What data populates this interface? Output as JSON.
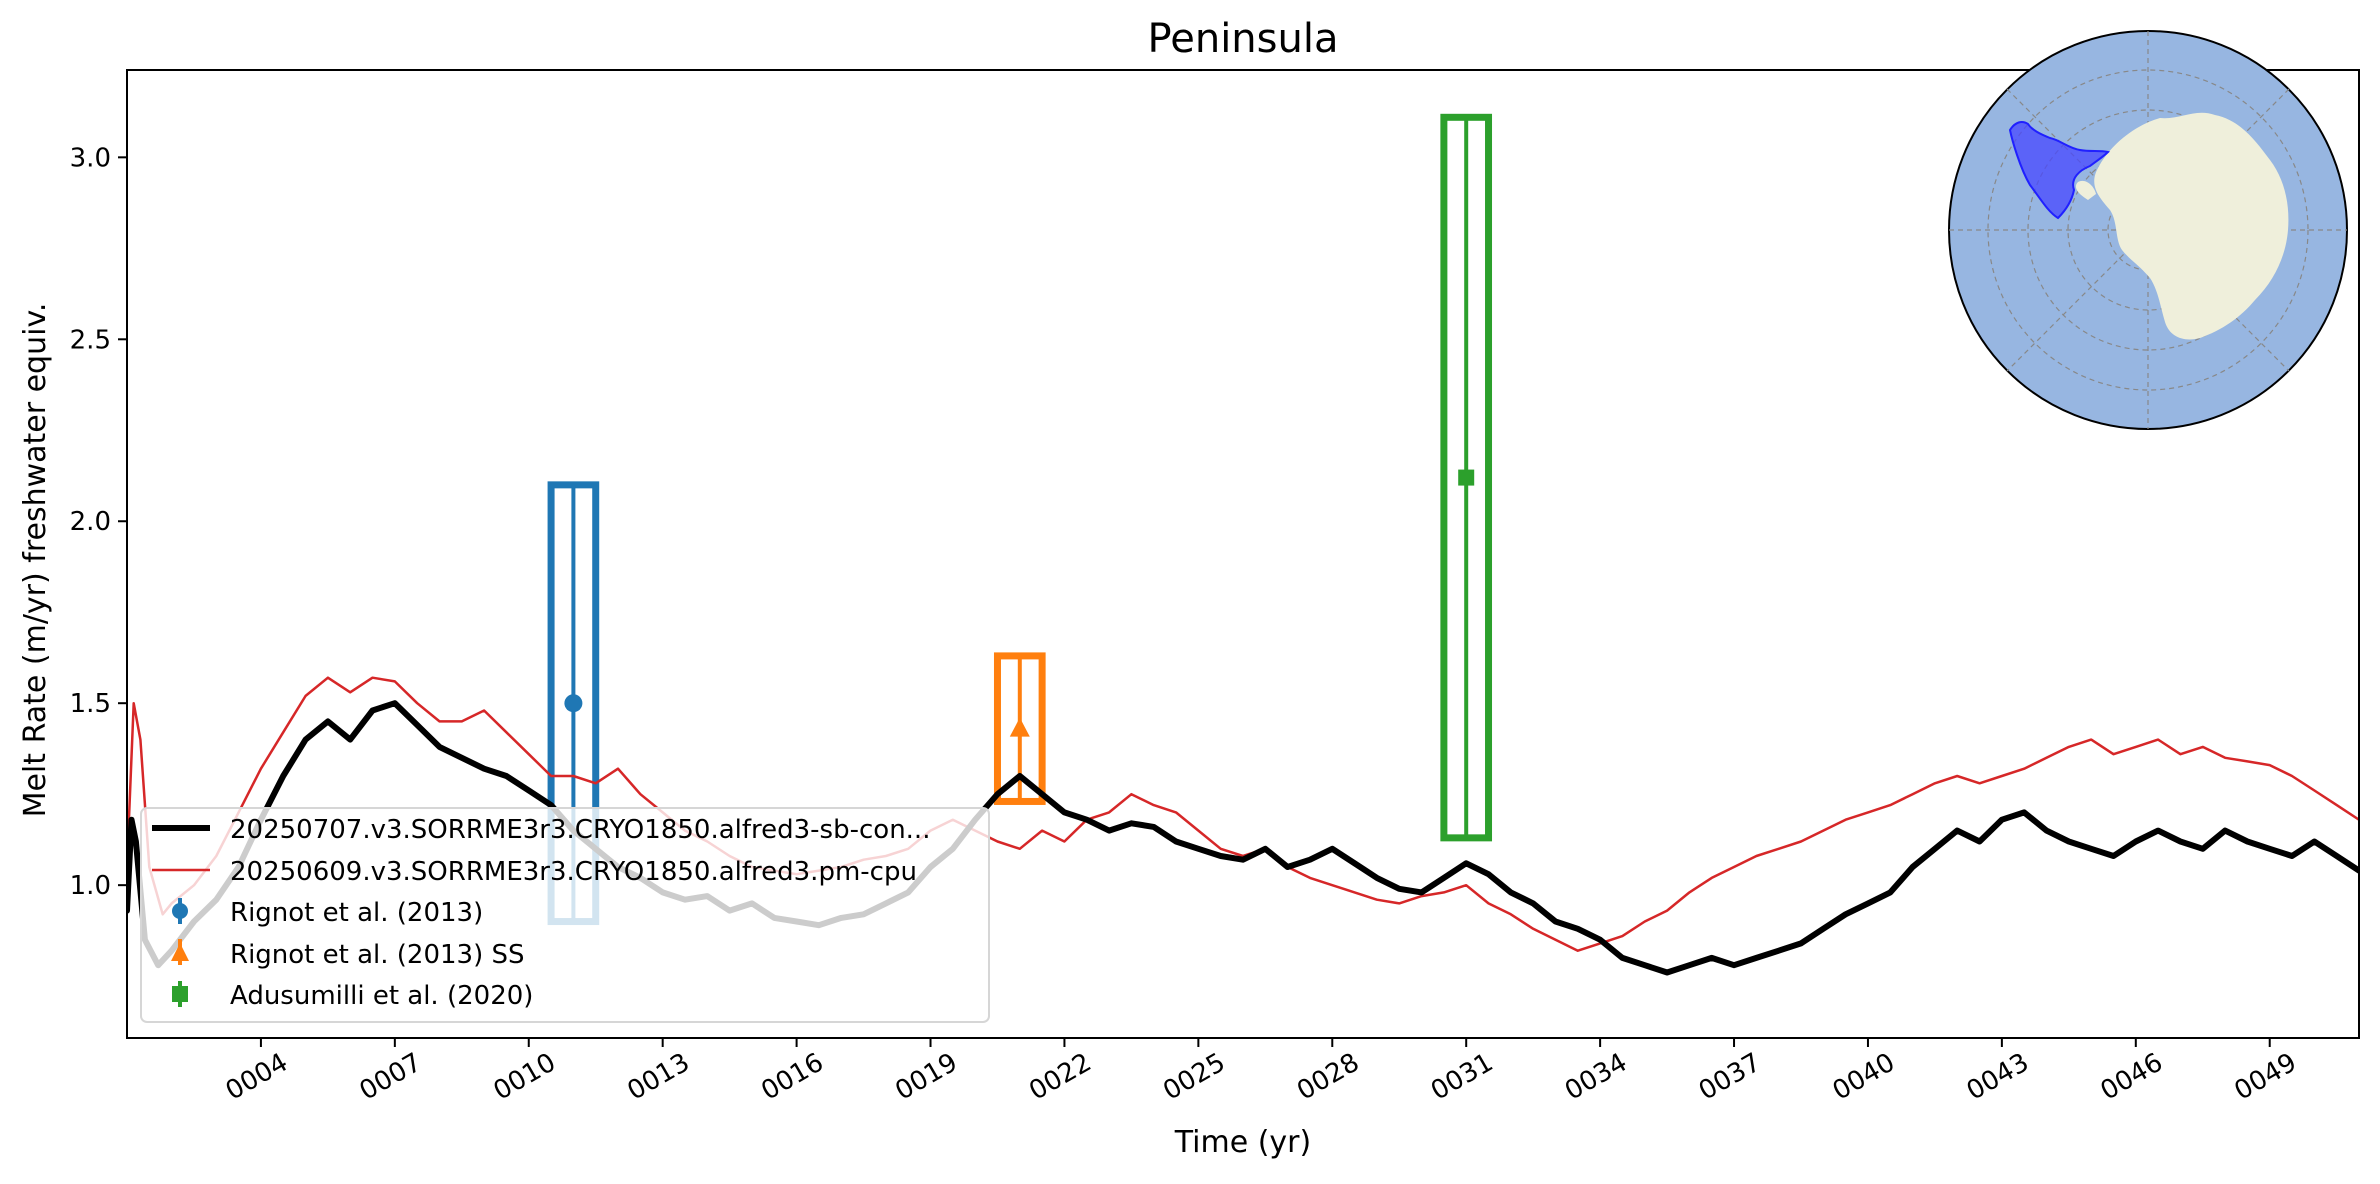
{
  "chart_data": {
    "type": "line",
    "title": "Peninsula",
    "xlabel": "Time (yr)",
    "ylabel": "Melt Rate (m/yr) freshwater equiv.",
    "xlim": [
      1,
      51
    ],
    "ylim": [
      0.58,
      3.24
    ],
    "x_ticks": [
      {
        "value": 4,
        "label": "0004"
      },
      {
        "value": 7,
        "label": "0007"
      },
      {
        "value": 10,
        "label": "0010"
      },
      {
        "value": 13,
        "label": "0013"
      },
      {
        "value": 16,
        "label": "0016"
      },
      {
        "value": 19,
        "label": "0019"
      },
      {
        "value": 22,
        "label": "0022"
      },
      {
        "value": 25,
        "label": "0025"
      },
      {
        "value": 28,
        "label": "0028"
      },
      {
        "value": 31,
        "label": "0031"
      },
      {
        "value": 34,
        "label": "0034"
      },
      {
        "value": 37,
        "label": "0037"
      },
      {
        "value": 40,
        "label": "0040"
      },
      {
        "value": 43,
        "label": "0043"
      },
      {
        "value": 46,
        "label": "0046"
      },
      {
        "value": 49,
        "label": "0049"
      }
    ],
    "y_ticks": [
      {
        "value": 1.0,
        "label": "1.0"
      },
      {
        "value": 1.5,
        "label": "1.5"
      },
      {
        "value": 2.0,
        "label": "2.0"
      },
      {
        "value": 2.5,
        "label": "2.5"
      },
      {
        "value": 3.0,
        "label": "3.0"
      }
    ],
    "grid": false,
    "legend_position": "lower-left",
    "series": [
      {
        "name": "20250707.v3.SORRME3r3.CRYO1850.alfred3-sb-con...",
        "color": "#000000",
        "kind": "line-thick",
        "points": [
          [
            1.0,
            0.93
          ],
          [
            1.1,
            1.18
          ],
          [
            1.2,
            1.12
          ],
          [
            1.4,
            0.85
          ],
          [
            1.7,
            0.78
          ],
          [
            2.0,
            0.82
          ],
          [
            2.5,
            0.9
          ],
          [
            3.0,
            0.96
          ],
          [
            3.5,
            1.05
          ],
          [
            4.0,
            1.18
          ],
          [
            4.5,
            1.3
          ],
          [
            5.0,
            1.4
          ],
          [
            5.5,
            1.45
          ],
          [
            6.0,
            1.4
          ],
          [
            6.5,
            1.48
          ],
          [
            7.0,
            1.5
          ],
          [
            7.5,
            1.44
          ],
          [
            8.0,
            1.38
          ],
          [
            8.5,
            1.35
          ],
          [
            9.0,
            1.32
          ],
          [
            9.5,
            1.3
          ],
          [
            10.0,
            1.26
          ],
          [
            10.5,
            1.22
          ],
          [
            11.0,
            1.15
          ],
          [
            11.5,
            1.1
          ],
          [
            12.0,
            1.05
          ],
          [
            12.5,
            1.02
          ],
          [
            13.0,
            0.98
          ],
          [
            13.5,
            0.96
          ],
          [
            14.0,
            0.97
          ],
          [
            14.5,
            0.93
          ],
          [
            15.0,
            0.95
          ],
          [
            15.5,
            0.91
          ],
          [
            16.0,
            0.9
          ],
          [
            16.5,
            0.89
          ],
          [
            17.0,
            0.91
          ],
          [
            17.5,
            0.92
          ],
          [
            18.0,
            0.95
          ],
          [
            18.5,
            0.98
          ],
          [
            19.0,
            1.05
          ],
          [
            19.5,
            1.1
          ],
          [
            20.0,
            1.18
          ],
          [
            20.5,
            1.25
          ],
          [
            21.0,
            1.3
          ],
          [
            21.5,
            1.25
          ],
          [
            22.0,
            1.2
          ],
          [
            22.5,
            1.18
          ],
          [
            23.0,
            1.15
          ],
          [
            23.5,
            1.17
          ],
          [
            24.0,
            1.16
          ],
          [
            24.5,
            1.12
          ],
          [
            25.0,
            1.1
          ],
          [
            25.5,
            1.08
          ],
          [
            26.0,
            1.07
          ],
          [
            26.5,
            1.1
          ],
          [
            27.0,
            1.05
          ],
          [
            27.5,
            1.07
          ],
          [
            28.0,
            1.1
          ],
          [
            28.5,
            1.06
          ],
          [
            29.0,
            1.02
          ],
          [
            29.5,
            0.99
          ],
          [
            30.0,
            0.98
          ],
          [
            30.5,
            1.02
          ],
          [
            31.0,
            1.06
          ],
          [
            31.5,
            1.03
          ],
          [
            32.0,
            0.98
          ],
          [
            32.5,
            0.95
          ],
          [
            33.0,
            0.9
          ],
          [
            33.5,
            0.88
          ],
          [
            34.0,
            0.85
          ],
          [
            34.5,
            0.8
          ],
          [
            35.0,
            0.78
          ],
          [
            35.5,
            0.76
          ],
          [
            36.0,
            0.78
          ],
          [
            36.5,
            0.8
          ],
          [
            37.0,
            0.78
          ],
          [
            37.5,
            0.8
          ],
          [
            38.0,
            0.82
          ],
          [
            38.5,
            0.84
          ],
          [
            39.0,
            0.88
          ],
          [
            39.5,
            0.92
          ],
          [
            40.0,
            0.95
          ],
          [
            40.5,
            0.98
          ],
          [
            41.0,
            1.05
          ],
          [
            41.5,
            1.1
          ],
          [
            42.0,
            1.15
          ],
          [
            42.5,
            1.12
          ],
          [
            43.0,
            1.18
          ],
          [
            43.5,
            1.2
          ],
          [
            44.0,
            1.15
          ],
          [
            44.5,
            1.12
          ],
          [
            45.0,
            1.1
          ],
          [
            45.5,
            1.08
          ],
          [
            46.0,
            1.12
          ],
          [
            46.5,
            1.15
          ],
          [
            47.0,
            1.12
          ],
          [
            47.5,
            1.1
          ],
          [
            48.0,
            1.15
          ],
          [
            48.5,
            1.12
          ],
          [
            49.0,
            1.1
          ],
          [
            49.5,
            1.08
          ],
          [
            50.0,
            1.12
          ],
          [
            50.5,
            1.08
          ],
          [
            51.0,
            1.04
          ]
        ]
      },
      {
        "name": "20250609.v3.SORRME3r3.CRYO1850.alfred3.pm-cpu",
        "color": "#d62728",
        "kind": "line-thin",
        "points": [
          [
            1.0,
            1.05
          ],
          [
            1.15,
            1.5
          ],
          [
            1.3,
            1.4
          ],
          [
            1.5,
            1.05
          ],
          [
            1.8,
            0.92
          ],
          [
            2.0,
            0.95
          ],
          [
            2.5,
            1.0
          ],
          [
            3.0,
            1.08
          ],
          [
            3.5,
            1.2
          ],
          [
            4.0,
            1.32
          ],
          [
            4.5,
            1.42
          ],
          [
            5.0,
            1.52
          ],
          [
            5.5,
            1.57
          ],
          [
            6.0,
            1.53
          ],
          [
            6.5,
            1.57
          ],
          [
            7.0,
            1.56
          ],
          [
            7.5,
            1.5
          ],
          [
            8.0,
            1.45
          ],
          [
            8.5,
            1.45
          ],
          [
            9.0,
            1.48
          ],
          [
            9.5,
            1.42
          ],
          [
            10.0,
            1.36
          ],
          [
            10.5,
            1.3
          ],
          [
            11.0,
            1.3
          ],
          [
            11.5,
            1.28
          ],
          [
            12.0,
            1.32
          ],
          [
            12.5,
            1.25
          ],
          [
            13.0,
            1.2
          ],
          [
            13.5,
            1.15
          ],
          [
            14.0,
            1.12
          ],
          [
            14.5,
            1.08
          ],
          [
            15.0,
            1.05
          ],
          [
            15.5,
            1.04
          ],
          [
            16.0,
            1.03
          ],
          [
            16.5,
            1.04
          ],
          [
            17.0,
            1.05
          ],
          [
            17.5,
            1.07
          ],
          [
            18.0,
            1.08
          ],
          [
            18.5,
            1.1
          ],
          [
            19.0,
            1.15
          ],
          [
            19.5,
            1.18
          ],
          [
            20.0,
            1.15
          ],
          [
            20.5,
            1.12
          ],
          [
            21.0,
            1.1
          ],
          [
            21.5,
            1.15
          ],
          [
            22.0,
            1.12
          ],
          [
            22.5,
            1.18
          ],
          [
            23.0,
            1.2
          ],
          [
            23.5,
            1.25
          ],
          [
            24.0,
            1.22
          ],
          [
            24.5,
            1.2
          ],
          [
            25.0,
            1.15
          ],
          [
            25.5,
            1.1
          ],
          [
            26.0,
            1.08
          ],
          [
            26.5,
            1.1
          ],
          [
            27.0,
            1.05
          ],
          [
            27.5,
            1.02
          ],
          [
            28.0,
            1.0
          ],
          [
            28.5,
            0.98
          ],
          [
            29.0,
            0.96
          ],
          [
            29.5,
            0.95
          ],
          [
            30.0,
            0.97
          ],
          [
            30.5,
            0.98
          ],
          [
            31.0,
            1.0
          ],
          [
            31.5,
            0.95
          ],
          [
            32.0,
            0.92
          ],
          [
            32.5,
            0.88
          ],
          [
            33.0,
            0.85
          ],
          [
            33.5,
            0.82
          ],
          [
            34.0,
            0.84
          ],
          [
            34.5,
            0.86
          ],
          [
            35.0,
            0.9
          ],
          [
            35.5,
            0.93
          ],
          [
            36.0,
            0.98
          ],
          [
            36.5,
            1.02
          ],
          [
            37.0,
            1.05
          ],
          [
            37.5,
            1.08
          ],
          [
            38.0,
            1.1
          ],
          [
            38.5,
            1.12
          ],
          [
            39.0,
            1.15
          ],
          [
            39.5,
            1.18
          ],
          [
            40.0,
            1.2
          ],
          [
            40.5,
            1.22
          ],
          [
            41.0,
            1.25
          ],
          [
            41.5,
            1.28
          ],
          [
            42.0,
            1.3
          ],
          [
            42.5,
            1.28
          ],
          [
            43.0,
            1.3
          ],
          [
            43.5,
            1.32
          ],
          [
            44.0,
            1.35
          ],
          [
            44.5,
            1.38
          ],
          [
            45.0,
            1.4
          ],
          [
            45.5,
            1.36
          ],
          [
            46.0,
            1.38
          ],
          [
            46.5,
            1.4
          ],
          [
            47.0,
            1.36
          ],
          [
            47.5,
            1.38
          ],
          [
            48.0,
            1.35
          ],
          [
            48.5,
            1.34
          ],
          [
            49.0,
            1.33
          ],
          [
            49.5,
            1.3
          ],
          [
            50.0,
            1.26
          ],
          [
            50.5,
            1.22
          ],
          [
            51.0,
            1.18
          ]
        ]
      }
    ],
    "observations": [
      {
        "name": "Rignot et al. (2013)",
        "color": "#1f77b4",
        "marker": "circle",
        "x": 11.0,
        "y": 1.5,
        "ymin": 0.9,
        "ymax": 2.1,
        "xmin": 10.5,
        "xmax": 11.5
      },
      {
        "name": "Rignot et al. (2013) SS",
        "color": "#ff7f0e",
        "marker": "triangle",
        "x": 21.0,
        "y": 1.43,
        "ymin": 1.23,
        "ymax": 1.63,
        "xmin": 20.5,
        "xmax": 21.5
      },
      {
        "name": "Adusumilli et al. (2020)",
        "color": "#2ca02c",
        "marker": "square",
        "x": 31.0,
        "y": 2.12,
        "ymin": 1.13,
        "ymax": 3.11,
        "xmin": 30.5,
        "xmax": 31.5
      }
    ],
    "inset_map": {
      "description_icon": "antarctica-polar-map-icon",
      "ocean_color": "#97b6e1",
      "land_color": "#efefdb",
      "highlight_color": "#3b3bff"
    }
  }
}
